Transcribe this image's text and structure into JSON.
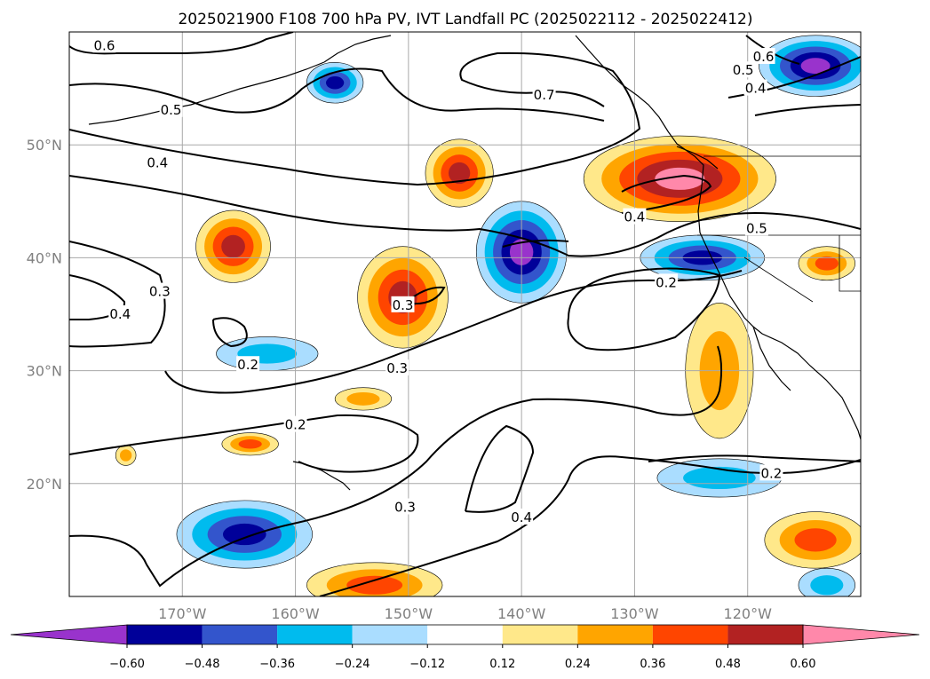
{
  "chart_data": {
    "type": "map",
    "title": "2025021900 F108 700 hPa PV, IVT Landfall PC (2025022112 - 2025022412)",
    "projection": "PlateCarree",
    "extent": {
      "lon": [
        -180,
        -110
      ],
      "lat": [
        10,
        60
      ]
    },
    "x_ticks": [
      {
        "value": -170,
        "label": "170°W"
      },
      {
        "value": -160,
        "label": "160°W"
      },
      {
        "value": -150,
        "label": "150°W"
      },
      {
        "value": -140,
        "label": "140°W"
      },
      {
        "value": -130,
        "label": "130°W"
      },
      {
        "value": -120,
        "label": "120°W"
      }
    ],
    "y_ticks": [
      {
        "value": 20,
        "label": "20°N"
      },
      {
        "value": 30,
        "label": "30°N"
      },
      {
        "value": 40,
        "label": "40°N"
      },
      {
        "value": 50,
        "label": "50°N"
      }
    ],
    "grid": true,
    "colorbar": {
      "orientation": "horizontal",
      "extend": "both",
      "levels": [
        -0.6,
        -0.48,
        -0.36,
        -0.24,
        -0.12,
        0.12,
        0.24,
        0.36,
        0.48,
        0.6
      ],
      "tick_labels": [
        "−0.60",
        "−0.48",
        "−0.36",
        "−0.24",
        "−0.12",
        "0.12",
        "0.24",
        "0.36",
        "0.48",
        "0.60"
      ],
      "colors": [
        "#9933cc",
        "#000099",
        "#3355cc",
        "#00bbee",
        "#aaddff",
        "#ffffff",
        "#ffe88a",
        "#ffa500",
        "#ff4500",
        "#b22222",
        "#ff88aa"
      ]
    },
    "filled_anomalies": [
      {
        "lon": -156.5,
        "lat": 55.5,
        "rx": 2.5,
        "ry": 1.8,
        "value": -0.48
      },
      {
        "lon": -145.5,
        "lat": 47.5,
        "rx": 3.0,
        "ry": 3.0,
        "value": 0.48
      },
      {
        "lon": -165.5,
        "lat": 41.0,
        "rx": 3.3,
        "ry": 3.2,
        "value": 0.48
      },
      {
        "lon": -140.0,
        "lat": 40.5,
        "rx": 4.0,
        "ry": 4.5,
        "value": -0.6
      },
      {
        "lon": -150.5,
        "lat": 36.5,
        "rx": 4.0,
        "ry": 4.5,
        "value": 0.48
      },
      {
        "lon": -126.0,
        "lat": 47.0,
        "rx": 8.5,
        "ry": 3.8,
        "value": 0.6
      },
      {
        "lon": -114.0,
        "lat": 57.0,
        "rx": 5.0,
        "ry": 2.7,
        "value": -0.6
      },
      {
        "lon": -124.0,
        "lat": 40.0,
        "rx": 5.5,
        "ry": 2.0,
        "value": -0.48
      },
      {
        "lon": -113.0,
        "lat": 39.5,
        "rx": 2.5,
        "ry": 1.5,
        "value": 0.36
      },
      {
        "lon": -162.5,
        "lat": 31.5,
        "rx": 4.5,
        "ry": 1.5,
        "value": -0.24
      },
      {
        "lon": -154.0,
        "lat": 27.5,
        "rx": 2.5,
        "ry": 1.0,
        "value": 0.24
      },
      {
        "lon": -164.0,
        "lat": 23.5,
        "rx": 2.5,
        "ry": 1.0,
        "value": 0.36
      },
      {
        "lon": -175.0,
        "lat": 22.5,
        "rx": 0.9,
        "ry": 0.9,
        "value": 0.24
      },
      {
        "lon": -122.5,
        "lat": 30.0,
        "rx": 3.0,
        "ry": 6.0,
        "value": 0.24
      },
      {
        "lon": -122.5,
        "lat": 20.5,
        "rx": 5.5,
        "ry": 1.7,
        "value": -0.24
      },
      {
        "lon": -164.5,
        "lat": 15.5,
        "rx": 6.0,
        "ry": 3.0,
        "value": -0.48
      },
      {
        "lon": -114.0,
        "lat": 15.0,
        "rx": 4.5,
        "ry": 2.5,
        "value": 0.36
      },
      {
        "lon": -153.0,
        "lat": 11.0,
        "rx": 6.0,
        "ry": 2.0,
        "value": 0.36
      },
      {
        "lon": -113.0,
        "lat": 11.0,
        "rx": 2.5,
        "ry": 1.5,
        "value": -0.24
      }
    ],
    "contour_labels": [
      {
        "text": "0.6",
        "lon": -176.9,
        "lat": 58.8
      },
      {
        "text": "0.7",
        "lon": -138.0,
        "lat": 54.4
      },
      {
        "text": "0.5",
        "lon": -171.0,
        "lat": 53.1
      },
      {
        "text": "0.4",
        "lon": -172.2,
        "lat": 48.4
      },
      {
        "text": "0.6",
        "lon": -118.6,
        "lat": 57.8
      },
      {
        "text": "0.5",
        "lon": -120.4,
        "lat": 56.6
      },
      {
        "text": "0.4",
        "lon": -119.3,
        "lat": 55.0
      },
      {
        "text": "0.4",
        "lon": -130.0,
        "lat": 43.6
      },
      {
        "text": "0.5",
        "lon": -119.2,
        "lat": 42.6
      },
      {
        "text": "0.2",
        "lon": -127.2,
        "lat": 37.8
      },
      {
        "text": "0.3",
        "lon": -172.0,
        "lat": 37.0
      },
      {
        "text": "0.4",
        "lon": -175.5,
        "lat": 35.0
      },
      {
        "text": "0.3",
        "lon": -150.5,
        "lat": 35.8
      },
      {
        "text": "0.2",
        "lon": -164.2,
        "lat": 30.5
      },
      {
        "text": "0.3",
        "lon": -151.0,
        "lat": 30.2
      },
      {
        "text": "0.2",
        "lon": -160.0,
        "lat": 25.2
      },
      {
        "text": "0.2",
        "lon": -117.9,
        "lat": 20.9
      },
      {
        "text": "0.3",
        "lon": -150.3,
        "lat": 17.9
      },
      {
        "text": "0.4",
        "lon": -140.0,
        "lat": 17.0
      }
    ]
  }
}
